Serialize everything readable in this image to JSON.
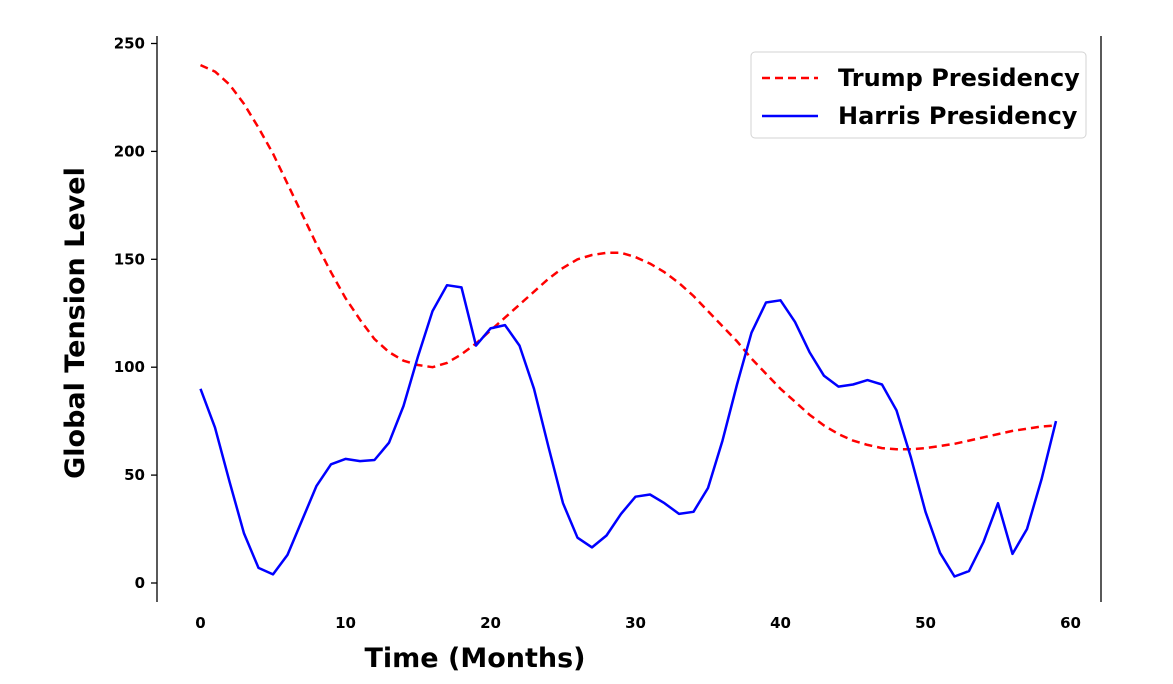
{
  "chart_data": {
    "type": "line",
    "xlabel": "Time (Months)",
    "ylabel": "Global Tension Level",
    "xlim": [
      -3,
      62
    ],
    "ylim": [
      -10,
      253
    ],
    "xticks": [
      0,
      10,
      20,
      30,
      40,
      50,
      60
    ],
    "yticks": [
      0,
      50,
      100,
      150,
      200,
      250
    ],
    "grid": false,
    "legend_position": "top-right",
    "series": [
      {
        "name": "Trump Presidency",
        "color": "#ff0000",
        "style": "dashed",
        "x": [
          0,
          1,
          2,
          3,
          4,
          5,
          6,
          7,
          8,
          9,
          10,
          11,
          12,
          13,
          14,
          15,
          16,
          17,
          18,
          19,
          20,
          21,
          22,
          23,
          24,
          25,
          26,
          27,
          28,
          29,
          30,
          31,
          32,
          33,
          34,
          35,
          36,
          37,
          38,
          39,
          40,
          41,
          42,
          43,
          44,
          45,
          46,
          47,
          48,
          49,
          50,
          51,
          52,
          53,
          54,
          55,
          56,
          57,
          58,
          59
        ],
        "y": [
          240,
          237,
          231,
          222,
          211,
          199,
          185,
          171,
          157,
          144,
          132,
          122,
          113,
          107,
          103,
          101,
          100,
          102,
          106,
          111,
          117,
          123,
          129,
          135,
          141,
          146,
          150,
          152,
          153,
          153,
          151,
          148,
          144,
          139,
          133,
          126,
          119,
          112,
          104,
          97,
          90,
          84,
          78,
          73,
          69,
          66,
          64,
          62.5,
          62,
          62,
          62.5,
          63.5,
          64.5,
          66,
          67.5,
          69,
          70.5,
          71.5,
          72.5,
          73
        ]
      },
      {
        "name": "Harris Presidency",
        "color": "#0000ff",
        "style": "solid",
        "x": [
          0,
          1,
          2,
          3,
          4,
          5,
          6,
          7,
          8,
          9,
          10,
          11,
          12,
          13,
          14,
          15,
          16,
          17,
          18,
          19,
          20,
          21,
          22,
          23,
          24,
          25,
          26,
          27,
          28,
          29,
          30,
          31,
          32,
          33,
          34,
          35,
          36,
          37,
          38,
          39,
          40,
          41,
          42,
          43,
          44,
          45,
          46,
          47,
          48,
          49,
          50,
          51,
          52,
          53,
          54,
          55,
          56,
          57,
          58,
          59
        ],
        "y": [
          90,
          72,
          47,
          23,
          7,
          4,
          13,
          29,
          45,
          55,
          57.5,
          56.5,
          57,
          65,
          82,
          105,
          126,
          138,
          137,
          110,
          118,
          119.5,
          110,
          90,
          63,
          37,
          21,
          16.5,
          22,
          32,
          40,
          41,
          37,
          32,
          33,
          44,
          66,
          92,
          116,
          130,
          131,
          121,
          107,
          96,
          91,
          92,
          94,
          92,
          80,
          58,
          33,
          14,
          3,
          5.5,
          19,
          37,
          13.5,
          25,
          48,
          75
        ]
      }
    ]
  }
}
